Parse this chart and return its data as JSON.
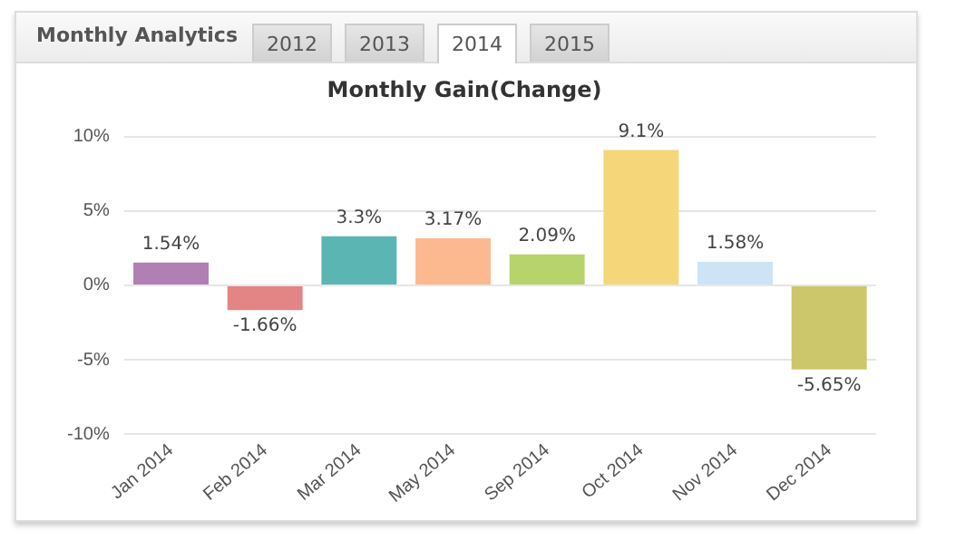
{
  "chart_data": {
    "type": "bar",
    "title": "Monthly Gain(Change)",
    "annotations": [
      "Monthly Analytics",
      "2012",
      "2013",
      "2014",
      "2015"
    ],
    "categories": [
      "Jan 2014",
      "Feb 2014",
      "Mar 2014",
      "May 2014",
      "Sep 2014",
      "Oct 2014",
      "Nov 2014",
      "Dec 2014"
    ],
    "values": [
      1.54,
      -1.66,
      3.3,
      3.17,
      2.09,
      9.1,
      1.58,
      -5.65
    ],
    "value_labels": [
      "1.54%",
      "-1.66%",
      "3.3%",
      "3.17%",
      "2.09%",
      "9.1%",
      "1.58%",
      "-5.65%"
    ],
    "colors": [
      "#b07fb3",
      "#e38585",
      "#5bb5b3",
      "#fcb990",
      "#b7d46c",
      "#f5d77a",
      "#cde4f7",
      "#cbc76a"
    ],
    "ylim": [
      -10,
      10
    ],
    "yticks": [
      {
        "value": -10,
        "label": "-10%"
      },
      {
        "value": -5,
        "label": "-5%"
      },
      {
        "value": 0,
        "label": "0%"
      },
      {
        "value": 5,
        "label": "5%"
      },
      {
        "value": 10,
        "label": "10%"
      }
    ],
    "grid": "y",
    "legend": false
  }
}
